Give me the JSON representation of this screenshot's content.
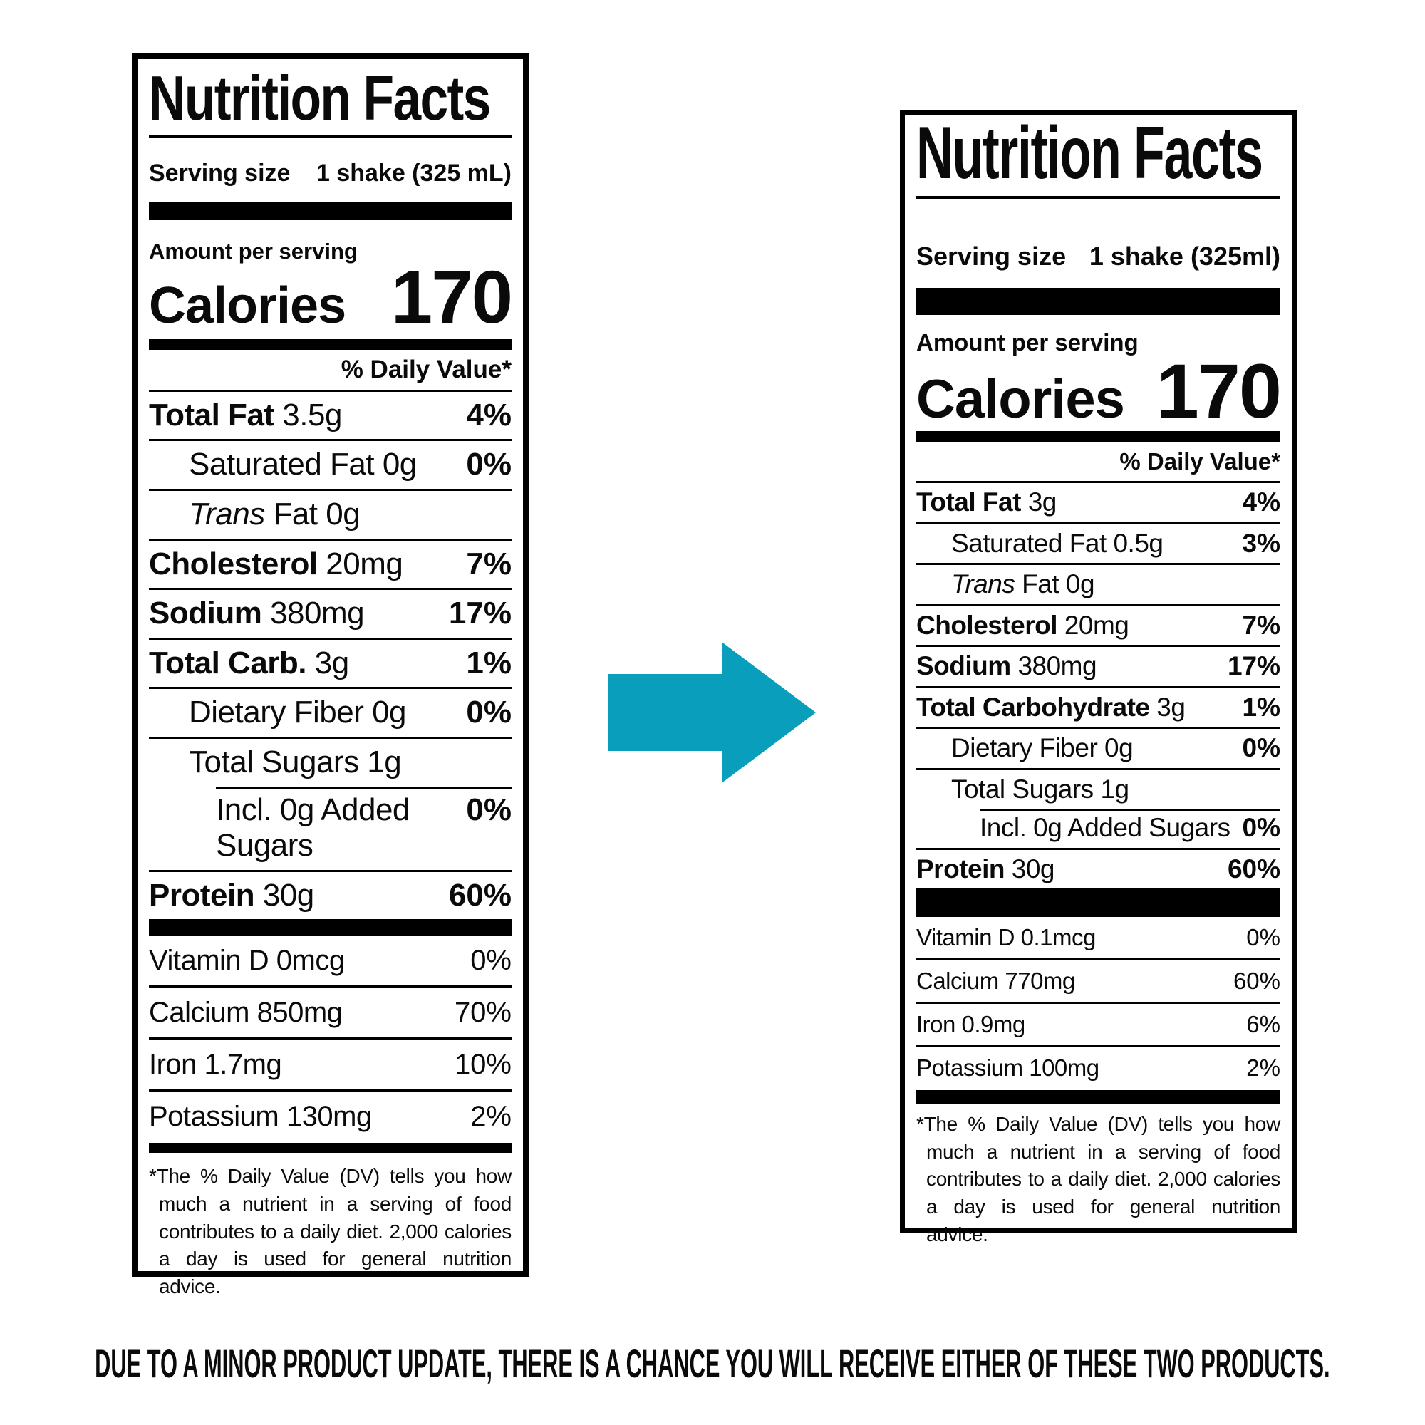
{
  "page": {
    "background": "#ffffff",
    "text_color": "#0a0a0a"
  },
  "caption": "DUE TO A MINOR PRODUCT UPDATE, THERE IS A CHANCE YOU WILL RECEIVE EITHER OF THESE TWO PRODUCTS.",
  "arrow": {
    "color": "#089EBC",
    "direction": "right"
  },
  "left": {
    "title": "Nutrition Facts",
    "serving_size_label": "Serving size",
    "serving_size_value": "1 shake (325 mL)",
    "amount_per_serving": "Amount per serving",
    "calories_label": "Calories",
    "calories_value": "170",
    "daily_value_header": "% Daily Value*",
    "rows": [
      {
        "lead": "Total Fat",
        "lead_style": "bold",
        "rest": "3.5g",
        "pct": "4%",
        "pct_bold": true,
        "indent": 0
      },
      {
        "rest": "Saturated Fat 0g",
        "pct": "0%",
        "pct_bold": true,
        "indent": 1
      },
      {
        "lead": "Trans",
        "lead_style": "italic",
        "rest": "Fat 0g",
        "indent": 1
      },
      {
        "lead": "Cholesterol",
        "lead_style": "bold",
        "rest": "20mg",
        "pct": "7%",
        "pct_bold": true,
        "indent": 0
      },
      {
        "lead": "Sodium",
        "lead_style": "bold",
        "rest": "380mg",
        "pct": "17%",
        "pct_bold": true,
        "indent": 0
      },
      {
        "lead": "Total Carb.",
        "lead_style": "bold",
        "rest": "3g",
        "pct": "1%",
        "pct_bold": true,
        "indent": 0
      },
      {
        "rest": "Dietary Fiber 0g",
        "pct": "0%",
        "pct_bold": true,
        "indent": 1
      },
      {
        "rest": "Total Sugars 1g",
        "indent": 1
      },
      {
        "rest": "Incl. 0g Added Sugars",
        "pct": "0%",
        "pct_bold": true,
        "indent": 2,
        "indent_separator": true
      },
      {
        "lead": "Protein",
        "lead_style": "bold",
        "rest": "30g",
        "pct": "60%",
        "pct_bold": true,
        "indent": 0
      }
    ],
    "vitamins": [
      {
        "rest": "Vitamin D 0mcg",
        "pct": "0%"
      },
      {
        "rest": "Calcium 850mg",
        "pct": "70%"
      },
      {
        "rest": "Iron 1.7mg",
        "pct": "10%"
      },
      {
        "rest": "Potassium 130mg",
        "pct": "2%"
      }
    ],
    "footnote": "*The % Daily Value (DV) tells you how much a nutrient in a serving of food contributes to a daily diet. 2,000 calories a day is used for general nutrition advice."
  },
  "right": {
    "title": "Nutrition Facts",
    "serving_size_label": "Serving size",
    "serving_size_value": "1 shake (325ml)",
    "amount_per_serving": "Amount per serving",
    "calories_label": "Calories",
    "calories_value": "170",
    "daily_value_header": "% Daily Value*",
    "rows": [
      {
        "lead": "Total Fat",
        "lead_style": "bold",
        "rest": "3g",
        "pct": "4%",
        "pct_bold": true,
        "indent": 0
      },
      {
        "rest": "Saturated Fat 0.5g",
        "pct": "3%",
        "pct_bold": true,
        "indent": 1
      },
      {
        "lead": "Trans",
        "lead_style": "italic",
        "rest": "Fat 0g",
        "indent": 1
      },
      {
        "lead": "Cholesterol",
        "lead_style": "bold",
        "rest": "20mg",
        "pct": "7%",
        "pct_bold": true,
        "indent": 0
      },
      {
        "lead": "Sodium",
        "lead_style": "bold",
        "rest": "380mg",
        "pct": "17%",
        "pct_bold": true,
        "indent": 0
      },
      {
        "lead": "Total Carbohydrate",
        "lead_style": "bold",
        "rest": "3g",
        "pct": "1%",
        "pct_bold": true,
        "indent": 0
      },
      {
        "rest": "Dietary Fiber 0g",
        "pct": "0%",
        "pct_bold": true,
        "indent": 1
      },
      {
        "rest": "Total Sugars 1g",
        "indent": 1
      },
      {
        "rest": "Incl. 0g Added Sugars",
        "pct": "0%",
        "pct_bold": true,
        "indent": 2,
        "indent_separator": true
      },
      {
        "lead": "Protein",
        "lead_style": "bold",
        "rest": "30g",
        "pct": "60%",
        "pct_bold": true,
        "indent": 0
      }
    ],
    "vitamins": [
      {
        "rest": "Vitamin D 0.1mcg",
        "pct": "0%"
      },
      {
        "rest": "Calcium 770mg",
        "pct": "60%"
      },
      {
        "rest": "Iron 0.9mg",
        "pct": "6%"
      },
      {
        "rest": "Potassium 100mg",
        "pct": "2%"
      }
    ],
    "footnote": "*The % Daily Value (DV) tells you how much a nutrient in a serving of food contributes to a daily diet. 2,000 calories a day is used for general nutrition advice."
  }
}
